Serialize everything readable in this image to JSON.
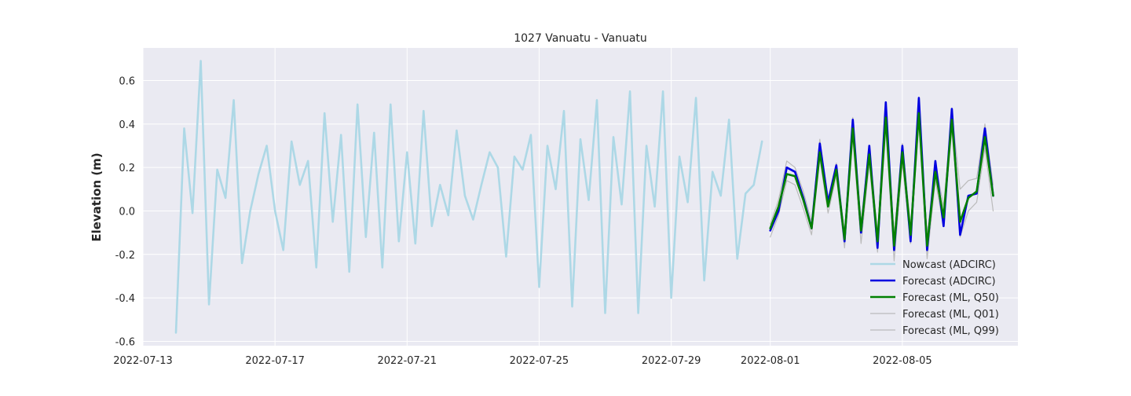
{
  "chart_data": {
    "type": "line",
    "title": "1027 Vanuatu - Vanuatu",
    "xlabel": "",
    "ylabel": "Elevation (m)",
    "xlim": [
      "2022-07-13T00:00",
      "2022-08-08T12:00"
    ],
    "ylim": [
      -0.62,
      0.75
    ],
    "x_ticks": [
      "2022-07-13",
      "2022-07-17",
      "2022-07-21",
      "2022-07-25",
      "2022-07-29",
      "2022-08-01",
      "2022-08-05"
    ],
    "y_ticks": [
      -0.6,
      -0.4,
      -0.2,
      0.0,
      0.2,
      0.4,
      0.6
    ],
    "grid": true,
    "legend_position": "lower-right",
    "series": [
      {
        "name": "Nowcast (ADCIRC)",
        "color": "#add8e6",
        "points": [
          [
            "2022-07-14T00:00",
            -0.56
          ],
          [
            "2022-07-14T06:00",
            0.38
          ],
          [
            "2022-07-14T12:00",
            -0.01
          ],
          [
            "2022-07-14T18:00",
            0.69
          ],
          [
            "2022-07-15T00:00",
            -0.43
          ],
          [
            "2022-07-15T06:00",
            0.19
          ],
          [
            "2022-07-15T12:00",
            0.06
          ],
          [
            "2022-07-15T18:00",
            0.51
          ],
          [
            "2022-07-16T00:00",
            -0.24
          ],
          [
            "2022-07-16T06:00",
            0.0
          ],
          [
            "2022-07-16T12:00",
            0.17
          ],
          [
            "2022-07-16T18:00",
            0.3
          ],
          [
            "2022-07-17T00:00",
            0.0
          ],
          [
            "2022-07-17T06:00",
            -0.18
          ],
          [
            "2022-07-17T12:00",
            0.32
          ],
          [
            "2022-07-17T18:00",
            0.12
          ],
          [
            "2022-07-18T00:00",
            0.23
          ],
          [
            "2022-07-18T06:00",
            -0.26
          ],
          [
            "2022-07-18T12:00",
            0.45
          ],
          [
            "2022-07-18T18:00",
            -0.05
          ],
          [
            "2022-07-19T00:00",
            0.35
          ],
          [
            "2022-07-19T06:00",
            -0.28
          ],
          [
            "2022-07-19T12:00",
            0.49
          ],
          [
            "2022-07-19T18:00",
            -0.12
          ],
          [
            "2022-07-20T00:00",
            0.36
          ],
          [
            "2022-07-20T06:00",
            -0.26
          ],
          [
            "2022-07-20T12:00",
            0.49
          ],
          [
            "2022-07-20T18:00",
            -0.14
          ],
          [
            "2022-07-21T00:00",
            0.27
          ],
          [
            "2022-07-21T06:00",
            -0.15
          ],
          [
            "2022-07-21T12:00",
            0.46
          ],
          [
            "2022-07-21T18:00",
            -0.07
          ],
          [
            "2022-07-22T00:00",
            0.12
          ],
          [
            "2022-07-22T06:00",
            -0.02
          ],
          [
            "2022-07-22T12:00",
            0.37
          ],
          [
            "2022-07-22T18:00",
            0.07
          ],
          [
            "2022-07-23T00:00",
            -0.04
          ],
          [
            "2022-07-23T06:00",
            0.12
          ],
          [
            "2022-07-23T12:00",
            0.27
          ],
          [
            "2022-07-23T18:00",
            0.2
          ],
          [
            "2022-07-24T00:00",
            -0.21
          ],
          [
            "2022-07-24T06:00",
            0.25
          ],
          [
            "2022-07-24T12:00",
            0.19
          ],
          [
            "2022-07-24T18:00",
            0.35
          ],
          [
            "2022-07-25T00:00",
            -0.35
          ],
          [
            "2022-07-25T06:00",
            0.3
          ],
          [
            "2022-07-25T12:00",
            0.1
          ],
          [
            "2022-07-25T18:00",
            0.46
          ],
          [
            "2022-07-26T00:00",
            -0.44
          ],
          [
            "2022-07-26T06:00",
            0.33
          ],
          [
            "2022-07-26T12:00",
            0.05
          ],
          [
            "2022-07-26T18:00",
            0.51
          ],
          [
            "2022-07-27T00:00",
            -0.47
          ],
          [
            "2022-07-27T06:00",
            0.34
          ],
          [
            "2022-07-27T12:00",
            0.03
          ],
          [
            "2022-07-27T18:00",
            0.55
          ],
          [
            "2022-07-28T00:00",
            -0.47
          ],
          [
            "2022-07-28T06:00",
            0.3
          ],
          [
            "2022-07-28T12:00",
            0.02
          ],
          [
            "2022-07-28T18:00",
            0.55
          ],
          [
            "2022-07-29T00:00",
            -0.4
          ],
          [
            "2022-07-29T06:00",
            0.25
          ],
          [
            "2022-07-29T12:00",
            0.04
          ],
          [
            "2022-07-29T18:00",
            0.52
          ],
          [
            "2022-07-30T00:00",
            -0.32
          ],
          [
            "2022-07-30T06:00",
            0.18
          ],
          [
            "2022-07-30T12:00",
            0.07
          ],
          [
            "2022-07-30T18:00",
            0.42
          ],
          [
            "2022-07-31T00:00",
            -0.22
          ],
          [
            "2022-07-31T06:00",
            0.08
          ],
          [
            "2022-07-31T12:00",
            0.12
          ],
          [
            "2022-07-31T18:00",
            0.32
          ]
        ]
      },
      {
        "name": "Forecast (ADCIRC)",
        "color": "#0000e0",
        "points": [
          [
            "2022-08-01T00:00",
            -0.09
          ],
          [
            "2022-08-01T06:00",
            0.0
          ],
          [
            "2022-08-01T12:00",
            0.2
          ],
          [
            "2022-08-01T18:00",
            0.18
          ],
          [
            "2022-08-02T00:00",
            0.06
          ],
          [
            "2022-08-02T06:00",
            -0.08
          ],
          [
            "2022-08-02T12:00",
            0.31
          ],
          [
            "2022-08-02T18:00",
            0.04
          ],
          [
            "2022-08-03T00:00",
            0.21
          ],
          [
            "2022-08-03T06:00",
            -0.14
          ],
          [
            "2022-08-03T12:00",
            0.42
          ],
          [
            "2022-08-03T18:00",
            -0.1
          ],
          [
            "2022-08-04T00:00",
            0.3
          ],
          [
            "2022-08-04T06:00",
            -0.17
          ],
          [
            "2022-08-04T12:00",
            0.5
          ],
          [
            "2022-08-04T18:00",
            -0.18
          ],
          [
            "2022-08-05T00:00",
            0.3
          ],
          [
            "2022-08-05T06:00",
            -0.14
          ],
          [
            "2022-08-05T12:00",
            0.52
          ],
          [
            "2022-08-05T18:00",
            -0.18
          ],
          [
            "2022-08-06T00:00",
            0.23
          ],
          [
            "2022-08-06T06:00",
            -0.07
          ],
          [
            "2022-08-06T12:00",
            0.47
          ],
          [
            "2022-08-06T18:00",
            -0.11
          ],
          [
            "2022-08-07T00:00",
            0.07
          ],
          [
            "2022-08-07T06:00",
            0.08
          ],
          [
            "2022-08-07T12:00",
            0.38
          ],
          [
            "2022-08-07T18:00",
            0.07
          ]
        ]
      },
      {
        "name": "Forecast (ML, Q50)",
        "color": "#008000",
        "points": [
          [
            "2022-08-01T00:00",
            -0.08
          ],
          [
            "2022-08-01T06:00",
            0.02
          ],
          [
            "2022-08-01T12:00",
            0.17
          ],
          [
            "2022-08-01T18:00",
            0.16
          ],
          [
            "2022-08-02T00:00",
            0.05
          ],
          [
            "2022-08-02T06:00",
            -0.08
          ],
          [
            "2022-08-02T12:00",
            0.27
          ],
          [
            "2022-08-02T18:00",
            0.02
          ],
          [
            "2022-08-03T00:00",
            0.19
          ],
          [
            "2022-08-03T06:00",
            -0.13
          ],
          [
            "2022-08-03T12:00",
            0.38
          ],
          [
            "2022-08-03T18:00",
            -0.09
          ],
          [
            "2022-08-04T00:00",
            0.26
          ],
          [
            "2022-08-04T06:00",
            -0.14
          ],
          [
            "2022-08-04T12:00",
            0.43
          ],
          [
            "2022-08-04T18:00",
            -0.16
          ],
          [
            "2022-08-05T00:00",
            0.27
          ],
          [
            "2022-08-05T06:00",
            -0.11
          ],
          [
            "2022-08-05T12:00",
            0.45
          ],
          [
            "2022-08-05T18:00",
            -0.16
          ],
          [
            "2022-08-06T00:00",
            0.18
          ],
          [
            "2022-08-06T06:00",
            -0.03
          ],
          [
            "2022-08-06T12:00",
            0.42
          ],
          [
            "2022-08-06T18:00",
            -0.05
          ],
          [
            "2022-08-07T00:00",
            0.06
          ],
          [
            "2022-08-07T06:00",
            0.09
          ],
          [
            "2022-08-07T12:00",
            0.34
          ],
          [
            "2022-08-07T18:00",
            0.07
          ]
        ]
      },
      {
        "name": "Forecast (ML, Q01)",
        "color": "#bbbbbb",
        "points": [
          [
            "2022-08-01T00:00",
            -0.12
          ],
          [
            "2022-08-01T06:00",
            -0.02
          ],
          [
            "2022-08-01T12:00",
            0.14
          ],
          [
            "2022-08-01T18:00",
            0.12
          ],
          [
            "2022-08-02T00:00",
            0.01
          ],
          [
            "2022-08-02T06:00",
            -0.11
          ],
          [
            "2022-08-02T12:00",
            0.24
          ],
          [
            "2022-08-02T18:00",
            -0.01
          ],
          [
            "2022-08-03T00:00",
            0.16
          ],
          [
            "2022-08-03T06:00",
            -0.17
          ],
          [
            "2022-08-03T12:00",
            0.34
          ],
          [
            "2022-08-03T18:00",
            -0.15
          ],
          [
            "2022-08-04T00:00",
            0.22
          ],
          [
            "2022-08-04T06:00",
            -0.19
          ],
          [
            "2022-08-04T12:00",
            0.38
          ],
          [
            "2022-08-04T18:00",
            -0.23
          ],
          [
            "2022-08-05T00:00",
            0.22
          ],
          [
            "2022-08-05T06:00",
            -0.15
          ],
          [
            "2022-08-05T12:00",
            0.41
          ],
          [
            "2022-08-05T18:00",
            -0.22
          ],
          [
            "2022-08-06T00:00",
            0.14
          ],
          [
            "2022-08-06T06:00",
            -0.07
          ],
          [
            "2022-08-06T12:00",
            0.38
          ],
          [
            "2022-08-06T18:00",
            -0.12
          ],
          [
            "2022-08-07T00:00",
            0.0
          ],
          [
            "2022-08-07T06:00",
            0.04
          ],
          [
            "2022-08-07T12:00",
            0.29
          ],
          [
            "2022-08-07T18:00",
            0.0
          ]
        ]
      },
      {
        "name": "Forecast (ML, Q99)",
        "color": "#bbbbbb",
        "points": [
          [
            "2022-08-01T00:00",
            -0.06
          ],
          [
            "2022-08-01T06:00",
            0.05
          ],
          [
            "2022-08-01T12:00",
            0.23
          ],
          [
            "2022-08-01T18:00",
            0.2
          ],
          [
            "2022-08-02T00:00",
            0.09
          ],
          [
            "2022-08-02T06:00",
            -0.05
          ],
          [
            "2022-08-02T12:00",
            0.33
          ],
          [
            "2022-08-02T18:00",
            0.06
          ],
          [
            "2022-08-03T00:00",
            0.22
          ],
          [
            "2022-08-03T06:00",
            -0.1
          ],
          [
            "2022-08-03T12:00",
            0.43
          ],
          [
            "2022-08-03T18:00",
            -0.05
          ],
          [
            "2022-08-04T00:00",
            0.3
          ],
          [
            "2022-08-04T06:00",
            -0.1
          ],
          [
            "2022-08-04T12:00",
            0.48
          ],
          [
            "2022-08-04T18:00",
            -0.11
          ],
          [
            "2022-08-05T00:00",
            0.31
          ],
          [
            "2022-08-05T06:00",
            -0.07
          ],
          [
            "2022-08-05T12:00",
            0.49
          ],
          [
            "2022-08-05T18:00",
            -0.11
          ],
          [
            "2022-08-06T00:00",
            0.22
          ],
          [
            "2022-08-06T06:00",
            0.02
          ],
          [
            "2022-08-06T12:00",
            0.46
          ],
          [
            "2022-08-06T18:00",
            0.1
          ],
          [
            "2022-08-07T00:00",
            0.14
          ],
          [
            "2022-08-07T06:00",
            0.15
          ],
          [
            "2022-08-07T12:00",
            0.4
          ],
          [
            "2022-08-07T18:00",
            0.12
          ]
        ]
      }
    ]
  }
}
